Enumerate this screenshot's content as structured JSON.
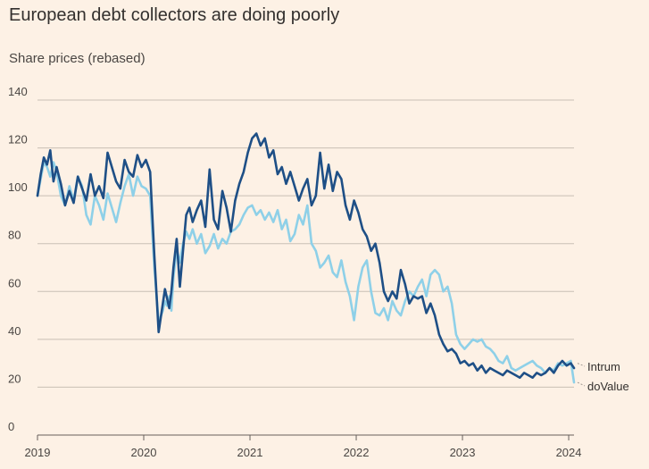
{
  "title": "European debt collectors are doing poorly",
  "subtitle": "Share prices (rebased)",
  "chart_data": {
    "type": "line",
    "ylim": [
      0,
      140
    ],
    "yticks": [
      0,
      20,
      40,
      60,
      80,
      100,
      120,
      140
    ],
    "xlim": [
      2019.0,
      2024.05
    ],
    "xticks": [
      2019,
      2020,
      2021,
      2022,
      2023,
      2024
    ],
    "xticklabels": [
      "2019",
      "2020",
      "2021",
      "2022",
      "2023",
      "2024"
    ],
    "grid": true,
    "legend": "right-end labels",
    "series": [
      {
        "name": "Intrum",
        "color": "#1e4f86",
        "x": [
          2019.0,
          2019.03,
          2019.06,
          2019.09,
          2019.12,
          2019.15,
          2019.18,
          2019.22,
          2019.26,
          2019.3,
          2019.34,
          2019.38,
          2019.42,
          2019.46,
          2019.5,
          2019.54,
          2019.58,
          2019.62,
          2019.66,
          2019.7,
          2019.74,
          2019.78,
          2019.82,
          2019.86,
          2019.9,
          2019.94,
          2019.98,
          2020.02,
          2020.06,
          2020.1,
          2020.14,
          2020.18,
          2020.2,
          2020.22,
          2020.24,
          2020.26,
          2020.28,
          2020.31,
          2020.34,
          2020.37,
          2020.4,
          2020.43,
          2020.46,
          2020.5,
          2020.54,
          2020.58,
          2020.62,
          2020.66,
          2020.7,
          2020.74,
          2020.78,
          2020.82,
          2020.86,
          2020.9,
          2020.94,
          2020.98,
          2021.02,
          2021.06,
          2021.1,
          2021.14,
          2021.18,
          2021.22,
          2021.26,
          2021.3,
          2021.34,
          2021.38,
          2021.42,
          2021.46,
          2021.5,
          2021.54,
          2021.58,
          2021.62,
          2021.66,
          2021.7,
          2021.74,
          2021.78,
          2021.82,
          2021.86,
          2021.9,
          2021.94,
          2021.98,
          2022.02,
          2022.06,
          2022.1,
          2022.14,
          2022.18,
          2022.22,
          2022.26,
          2022.3,
          2022.34,
          2022.38,
          2022.42,
          2022.46,
          2022.5,
          2022.54,
          2022.58,
          2022.62,
          2022.66,
          2022.7,
          2022.74,
          2022.78,
          2022.82,
          2022.86,
          2022.9,
          2022.94,
          2022.98,
          2023.02,
          2023.06,
          2023.1,
          2023.14,
          2023.18,
          2023.22,
          2023.26,
          2023.3,
          2023.34,
          2023.38,
          2023.42,
          2023.46,
          2023.5,
          2023.54,
          2023.58,
          2023.62,
          2023.66,
          2023.7,
          2023.74,
          2023.78,
          2023.82,
          2023.86,
          2023.9,
          2023.94,
          2023.98,
          2024.02,
          2024.05
        ],
        "values": [
          100,
          109,
          116,
          113,
          119,
          106,
          112,
          105,
          96,
          102,
          97,
          108,
          103,
          98,
          109,
          100,
          104,
          99,
          118,
          112,
          106,
          103,
          115,
          110,
          108,
          117,
          112,
          115,
          110,
          75,
          43,
          55,
          61,
          57,
          53,
          60,
          70,
          82,
          62,
          77,
          92,
          95,
          89,
          94,
          98,
          87,
          111,
          90,
          86,
          102,
          95,
          85,
          98,
          105,
          110,
          118,
          124,
          126,
          121,
          124,
          116,
          119,
          109,
          112,
          105,
          110,
          104,
          98,
          103,
          107,
          96,
          100,
          118,
          103,
          113,
          102,
          110,
          107,
          96,
          90,
          98,
          93,
          86,
          83,
          77,
          80,
          72,
          60,
          56,
          60,
          57,
          69,
          63,
          55,
          58,
          57,
          58,
          51,
          55,
          50,
          42,
          38,
          35,
          36,
          34,
          30,
          31,
          29,
          30,
          27,
          29,
          26,
          28,
          27,
          26,
          25,
          27,
          26,
          25,
          24,
          26,
          25,
          24,
          26,
          25,
          26,
          28,
          26,
          29,
          31,
          29,
          30,
          28
        ],
        "label_value": 30
      },
      {
        "name": "doValue",
        "color": "#8ed0e8",
        "x": [
          2019.0,
          2019.03,
          2019.06,
          2019.09,
          2019.12,
          2019.15,
          2019.18,
          2019.22,
          2019.26,
          2019.3,
          2019.34,
          2019.38,
          2019.42,
          2019.46,
          2019.5,
          2019.54,
          2019.58,
          2019.62,
          2019.66,
          2019.7,
          2019.74,
          2019.78,
          2019.82,
          2019.86,
          2019.9,
          2019.94,
          2019.98,
          2020.02,
          2020.06,
          2020.1,
          2020.14,
          2020.18,
          2020.2,
          2020.22,
          2020.24,
          2020.26,
          2020.28,
          2020.31,
          2020.34,
          2020.37,
          2020.4,
          2020.43,
          2020.46,
          2020.5,
          2020.54,
          2020.58,
          2020.62,
          2020.66,
          2020.7,
          2020.74,
          2020.78,
          2020.82,
          2020.86,
          2020.9,
          2020.94,
          2020.98,
          2021.02,
          2021.06,
          2021.1,
          2021.14,
          2021.18,
          2021.22,
          2021.26,
          2021.3,
          2021.34,
          2021.38,
          2021.42,
          2021.46,
          2021.5,
          2021.54,
          2021.58,
          2021.62,
          2021.66,
          2021.7,
          2021.74,
          2021.78,
          2021.82,
          2021.86,
          2021.9,
          2021.94,
          2021.98,
          2022.02,
          2022.06,
          2022.1,
          2022.14,
          2022.18,
          2022.22,
          2022.26,
          2022.3,
          2022.34,
          2022.38,
          2022.42,
          2022.46,
          2022.5,
          2022.54,
          2022.58,
          2022.62,
          2022.66,
          2022.7,
          2022.74,
          2022.78,
          2022.82,
          2022.86,
          2022.9,
          2022.94,
          2022.98,
          2023.02,
          2023.06,
          2023.1,
          2023.14,
          2023.18,
          2023.22,
          2023.26,
          2023.3,
          2023.34,
          2023.38,
          2023.42,
          2023.46,
          2023.5,
          2023.54,
          2023.58,
          2023.62,
          2023.66,
          2023.7,
          2023.74,
          2023.78,
          2023.82,
          2023.86,
          2023.9,
          2023.94,
          2023.98,
          2024.02,
          2024.05
        ],
        "values": [
          100,
          107,
          114,
          112,
          108,
          114,
          110,
          100,
          96,
          104,
          98,
          108,
          104,
          92,
          88,
          100,
          96,
          90,
          101,
          95,
          89,
          97,
          104,
          109,
          100,
          108,
          104,
          103,
          100,
          70,
          47,
          52,
          56,
          54,
          58,
          52,
          66,
          78,
          72,
          80,
          85,
          82,
          86,
          80,
          84,
          76,
          79,
          84,
          78,
          82,
          80,
          85,
          86,
          88,
          92,
          95,
          96,
          92,
          94,
          90,
          93,
          89,
          94,
          86,
          90,
          81,
          84,
          92,
          88,
          96,
          80,
          77,
          70,
          72,
          75,
          68,
          66,
          73,
          64,
          58,
          48,
          62,
          70,
          73,
          60,
          51,
          50,
          53,
          48,
          56,
          52,
          50,
          56,
          60,
          58,
          62,
          65,
          58,
          67,
          69,
          67,
          60,
          62,
          55,
          42,
          38,
          36,
          38,
          40,
          39,
          40,
          37,
          36,
          34,
          31,
          30,
          33,
          28,
          27,
          28,
          29,
          30,
          31,
          29,
          28,
          26,
          28,
          27,
          30,
          29,
          30,
          31,
          22
        ],
        "label_value": 22
      }
    ]
  }
}
